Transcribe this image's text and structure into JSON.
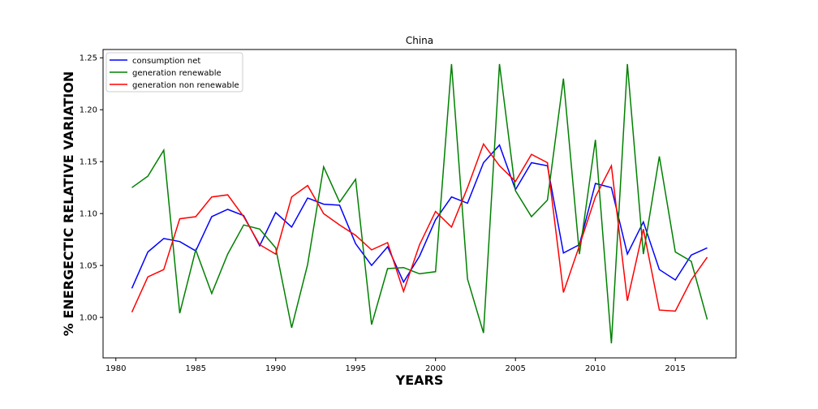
{
  "chart_data": {
    "type": "line",
    "title": "China",
    "xlabel": "YEARS",
    "ylabel": "% ENERGECTIC RELATIVE VARIATION",
    "xlim": [
      1979.2,
      2018.8
    ],
    "ylim": [
      0.961,
      1.258
    ],
    "xticks": [
      1980,
      1985,
      1990,
      1995,
      2000,
      2005,
      2010,
      2015
    ],
    "yticks": [
      1.0,
      1.05,
      1.1,
      1.15,
      1.2,
      1.25
    ],
    "ytick_labels": [
      "1.00",
      "1.05",
      "1.10",
      "1.15",
      "1.20",
      "1.25"
    ],
    "grid": false,
    "legend_position": "top-left",
    "x": [
      1981,
      1982,
      1983,
      1984,
      1985,
      1986,
      1987,
      1988,
      1989,
      1990,
      1991,
      1992,
      1993,
      1994,
      1995,
      1996,
      1997,
      1998,
      1999,
      2000,
      2001,
      2002,
      2003,
      2004,
      2005,
      2006,
      2007,
      2008,
      2009,
      2010,
      2011,
      2012,
      2013,
      2014,
      2015,
      2016,
      2017
    ],
    "series": [
      {
        "name": "consumption net",
        "color": "#0000ff",
        "values": [
          1.028,
          1.063,
          1.076,
          1.073,
          1.064,
          1.097,
          1.104,
          1.098,
          1.069,
          1.101,
          1.087,
          1.115,
          1.109,
          1.108,
          1.071,
          1.05,
          1.068,
          1.034,
          1.059,
          1.094,
          1.116,
          1.11,
          1.149,
          1.166,
          1.123,
          1.149,
          1.146,
          1.062,
          1.07,
          1.129,
          1.125,
          1.061,
          1.092,
          1.046,
          1.036,
          1.06,
          1.067
        ]
      },
      {
        "name": "generation renewable",
        "color": "#008000",
        "values": [
          1.125,
          1.136,
          1.161,
          1.004,
          1.065,
          1.023,
          1.061,
          1.089,
          1.085,
          1.067,
          0.99,
          1.051,
          1.145,
          1.111,
          1.133,
          0.993,
          1.047,
          1.048,
          1.042,
          1.044,
          1.244,
          1.037,
          0.985,
          1.244,
          1.122,
          1.097,
          1.113,
          1.23,
          1.061,
          1.171,
          0.975,
          1.244,
          1.061,
          1.155,
          1.063,
          1.054,
          0.998
        ]
      },
      {
        "name": "generation non renewable",
        "color": "#ff0000",
        "values": [
          1.005,
          1.039,
          1.046,
          1.095,
          1.097,
          1.116,
          1.118,
          1.097,
          1.07,
          1.061,
          1.116,
          1.127,
          1.1,
          1.089,
          1.079,
          1.065,
          1.072,
          1.025,
          1.07,
          1.102,
          1.087,
          1.125,
          1.167,
          1.146,
          1.131,
          1.157,
          1.149,
          1.024,
          1.069,
          1.116,
          1.146,
          1.016,
          1.085,
          1.007,
          1.006,
          1.036,
          1.058
        ]
      }
    ]
  }
}
